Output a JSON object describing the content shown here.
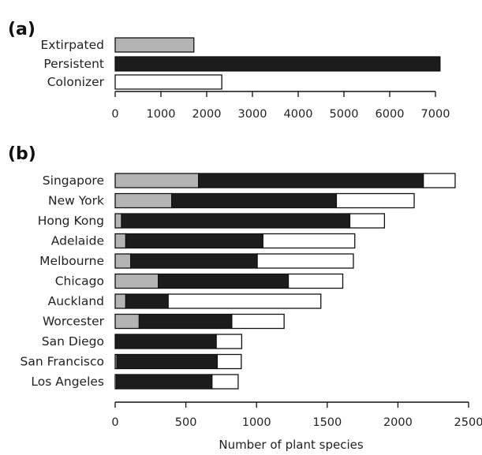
{
  "chart_data": [
    {
      "type": "bar",
      "orientation": "horizontal",
      "panel": "(a)",
      "categories": [
        "Extirpated",
        "Persistent",
        "Colonizer"
      ],
      "values": [
        1720,
        7100,
        2330
      ],
      "bar_colors": [
        "#b4b4b4",
        "#1c1c1c",
        "#ffffff"
      ],
      "xticks": [
        0,
        1000,
        2000,
        3000,
        4000,
        5000,
        6000,
        7000
      ],
      "xlim": [
        0,
        7000
      ],
      "xlabel": "",
      "grid": false
    },
    {
      "type": "bar",
      "orientation": "horizontal",
      "stacked": true,
      "panel": "(b)",
      "categories": [
        "Singapore",
        "New York",
        "Hong Kong",
        "Adelaide",
        "Melbourne",
        "Chicago",
        "Auckland",
        "Worcester",
        "San Diego",
        "San Francisco",
        "Los Angeles"
      ],
      "series": [
        {
          "key": "extirpated",
          "color": "#b4b4b4",
          "values": [
            590,
            400,
            45,
            75,
            110,
            305,
            75,
            170,
            0,
            12,
            10
          ]
        },
        {
          "key": "persistent",
          "color": "#1c1c1c",
          "values": [
            1590,
            1165,
            1615,
            970,
            895,
            920,
            300,
            655,
            715,
            710,
            675
          ]
        },
        {
          "key": "colonizer",
          "color": "#ffffff",
          "values": [
            225,
            550,
            245,
            650,
            680,
            385,
            1080,
            370,
            180,
            170,
            185
          ]
        }
      ],
      "xticks": [
        0,
        500,
        1000,
        1500,
        2000,
        2500
      ],
      "xlim": [
        0,
        2500
      ],
      "xlabel": "Number of plant species",
      "grid": false
    }
  ]
}
